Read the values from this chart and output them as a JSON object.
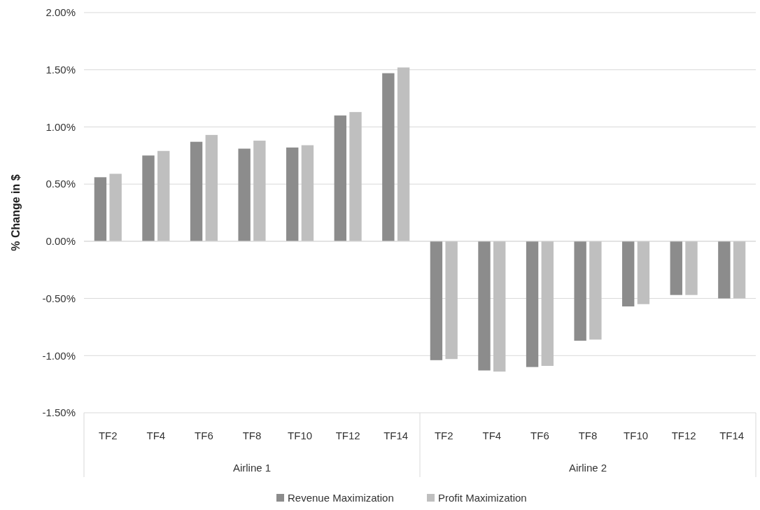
{
  "chart_data": {
    "type": "bar",
    "ylabel": "% Change in $",
    "categories": [
      "TF2",
      "TF4",
      "TF6",
      "TF8",
      "TF10",
      "TF12",
      "TF14",
      "TF2",
      "TF4",
      "TF6",
      "TF8",
      "TF10",
      "TF12",
      "TF14"
    ],
    "series": [
      {
        "name": "Revenue Maximization",
        "color": "#8c8c8c",
        "values": [
          0.56,
          0.75,
          0.87,
          0.81,
          0.82,
          1.1,
          1.47,
          -1.04,
          -1.13,
          -1.1,
          -0.87,
          -0.57,
          -0.47,
          -0.5
        ]
      },
      {
        "name": "Profit Maximization",
        "color": "#bfbfbf",
        "values": [
          0.59,
          0.79,
          0.93,
          0.88,
          0.84,
          1.13,
          1.52,
          -1.03,
          -1.14,
          -1.09,
          -0.86,
          -0.55,
          -0.47,
          -0.5
        ]
      }
    ],
    "ylim": [
      -1.5,
      2
    ],
    "yticks": [
      {
        "value": -1.5,
        "label": "-1.50%"
      },
      {
        "value": -1,
        "label": "-1.00%"
      },
      {
        "value": -0.5,
        "label": "-0.50%"
      },
      {
        "value": 0,
        "label": "0.00%"
      },
      {
        "value": 0.5,
        "label": "0.50%"
      },
      {
        "value": 1,
        "label": "1.00%"
      },
      {
        "value": 1.5,
        "label": "1.50%"
      },
      {
        "value": 2,
        "label": "2.00%"
      }
    ],
    "grid": "y",
    "legend": "bottom",
    "annotations": [
      "Airline 1",
      "Airline 2"
    ]
  }
}
